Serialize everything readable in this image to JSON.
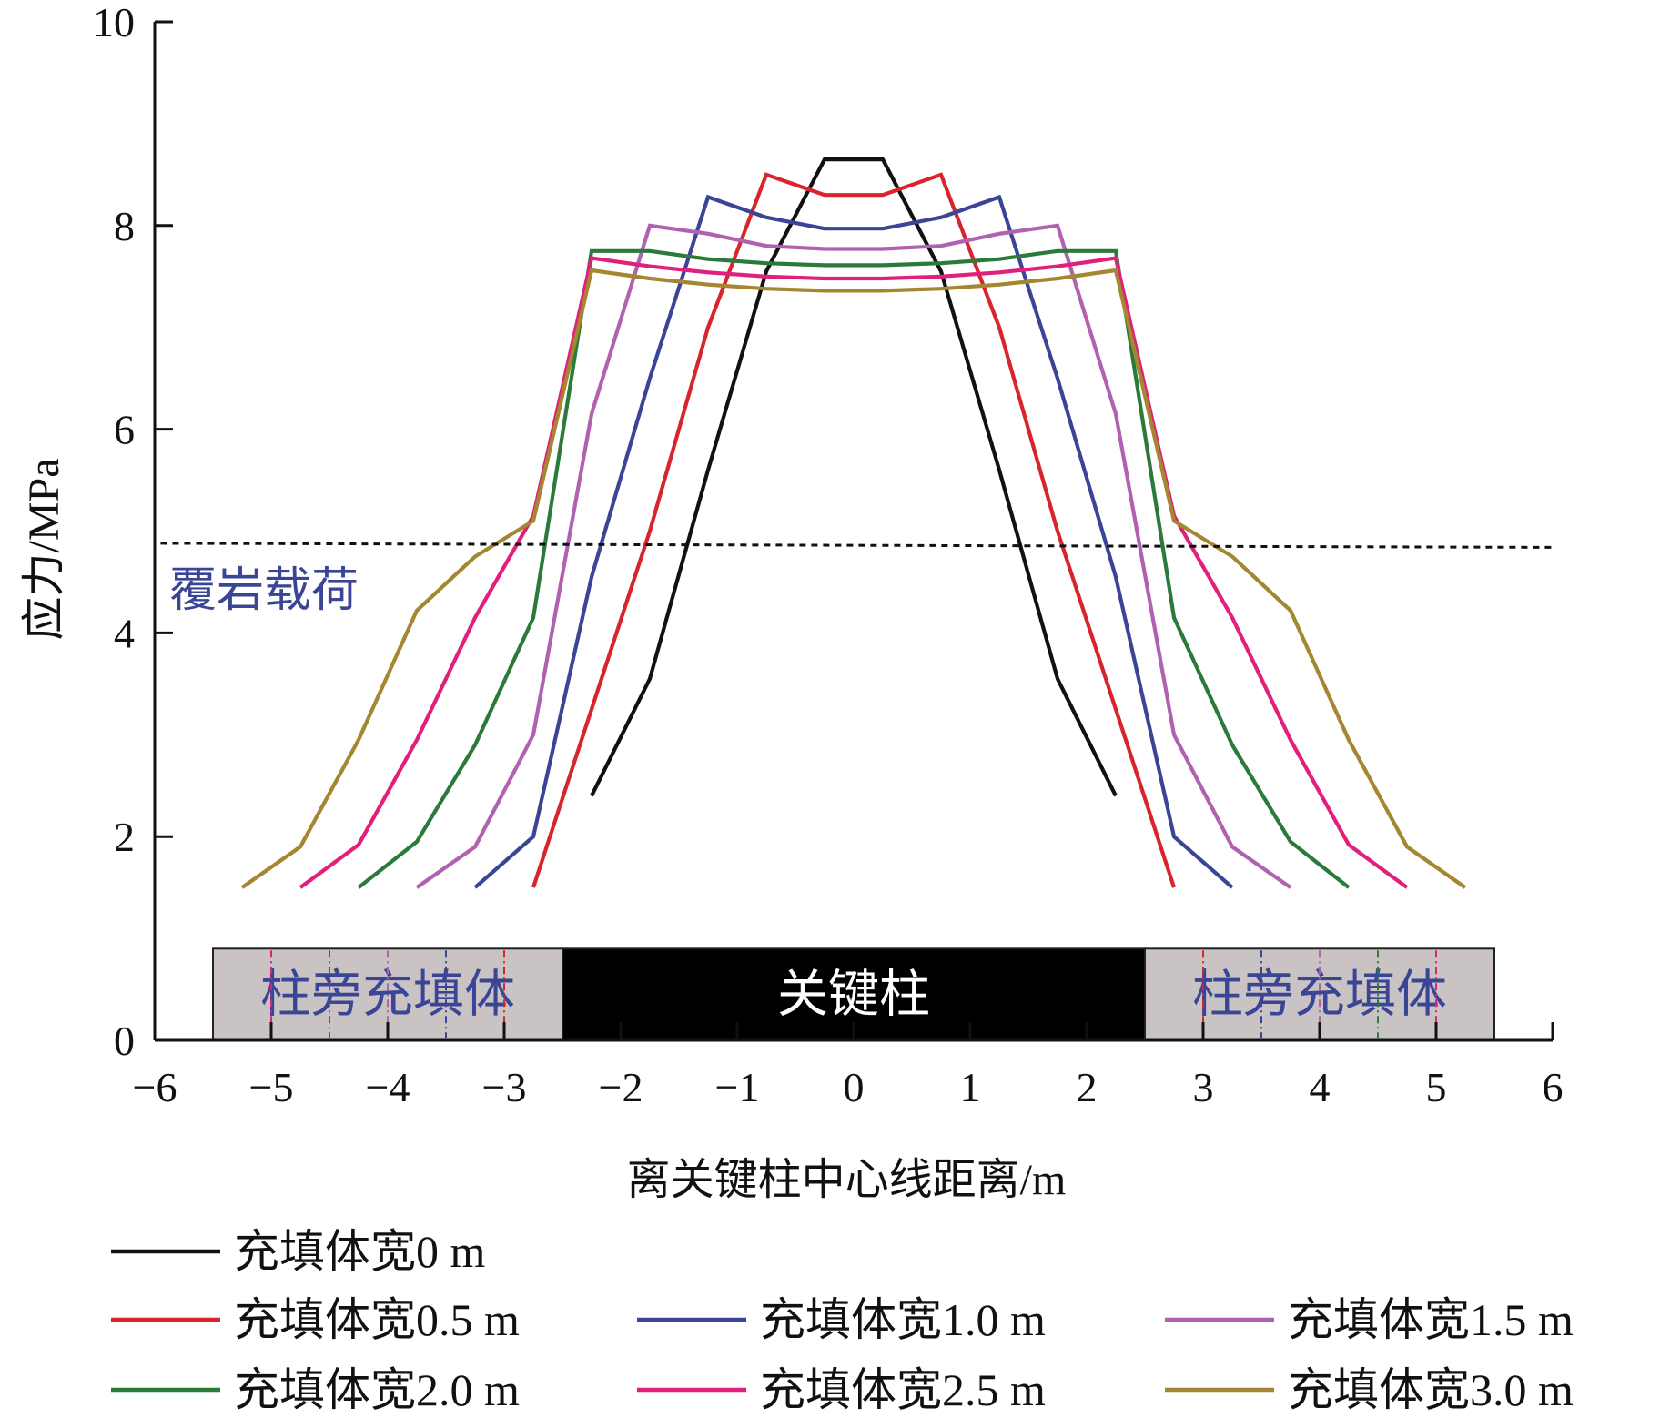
{
  "chart_data": {
    "type": "line",
    "xlabel": "离关键柱中心线距离/m",
    "ylabel": "应力/MPa",
    "xlim": [
      -6,
      6
    ],
    "ylim": [
      0,
      10
    ],
    "xticks": [
      -6,
      -5,
      -4,
      -3,
      -2,
      -1,
      0,
      1,
      2,
      3,
      4,
      5,
      6
    ],
    "yticks": [
      0,
      2,
      4,
      6,
      8,
      10
    ],
    "xtick_labels": [
      "−6",
      "−5",
      "−4",
      "−3",
      "−2",
      "−1",
      "0",
      "1",
      "2",
      "3",
      "4",
      "5",
      "6"
    ],
    "ytick_labels": [
      "0",
      "2",
      "4",
      "6",
      "8",
      "10"
    ],
    "grid": false,
    "legend_position": "bottom",
    "overburden_load": {
      "label": "覆岩载荷",
      "label_color": "#3a4596",
      "y_start": 4.88,
      "y_end": 4.84,
      "x_range": [
        -5.95,
        6
      ]
    },
    "regions": [
      {
        "label": "柱旁充填体",
        "x_start": -5.5,
        "x_end": -2.5,
        "fill": "#c9c3c3",
        "text_color": "#3a4596"
      },
      {
        "label": "关键柱",
        "x_start": -2.5,
        "x_end": 2.5,
        "fill": "#000000",
        "text_color": "#ffffff"
      },
      {
        "label": "柱旁充填体",
        "x_start": 2.5,
        "x_end": 5.5,
        "fill": "#c9c3c3",
        "text_color": "#3a4596"
      }
    ],
    "region_band": [
      0.0,
      0.9
    ],
    "region_markers": [
      {
        "x": -5.0,
        "color": "#e0207a"
      },
      {
        "x": -4.5,
        "color": "#2a7a3a"
      },
      {
        "x": -4.0,
        "color": "#b062b0"
      },
      {
        "x": -3.5,
        "color": "#3a4596"
      },
      {
        "x": -3.0,
        "color": "#d8242d"
      },
      {
        "x": 3.0,
        "color": "#d8242d"
      },
      {
        "x": 3.5,
        "color": "#3a4596"
      },
      {
        "x": 4.0,
        "color": "#b062b0"
      },
      {
        "x": 4.5,
        "color": "#2a7a3a"
      },
      {
        "x": 5.0,
        "color": "#e0207a"
      }
    ],
    "series": [
      {
        "name": "充填体宽0 m",
        "color": "#111111",
        "x": [
          -2.25,
          -1.75,
          -1.25,
          -0.75,
          -0.25,
          0.25,
          0.75,
          1.25,
          1.75,
          2.25
        ],
        "y": [
          2.4,
          3.55,
          5.6,
          7.55,
          8.65,
          8.65,
          7.55,
          5.6,
          3.55,
          2.4
        ]
      },
      {
        "name": "充填体宽0.5 m",
        "color": "#d8242d",
        "x": [
          -2.75,
          -2.25,
          -1.75,
          -1.25,
          -0.75,
          -0.25,
          0.25,
          0.75,
          1.25,
          1.75,
          2.25,
          2.75
        ],
        "y": [
          1.5,
          3.25,
          5.0,
          7.0,
          8.5,
          8.3,
          8.3,
          8.5,
          7.0,
          5.0,
          3.25,
          1.5
        ]
      },
      {
        "name": "充填体宽1.0 m",
        "color": "#3a4596",
        "x": [
          -3.25,
          -2.75,
          -2.25,
          -1.75,
          -1.25,
          -0.75,
          -0.25,
          0.25,
          0.75,
          1.25,
          1.75,
          2.25,
          2.75,
          3.25
        ],
        "y": [
          1.5,
          2.0,
          4.55,
          6.5,
          8.28,
          8.08,
          7.97,
          7.97,
          8.08,
          8.28,
          6.5,
          4.55,
          2.0,
          1.5
        ]
      },
      {
        "name": "充填体宽1.5 m",
        "color": "#b062b0",
        "x": [
          -3.75,
          -3.25,
          -2.75,
          -2.25,
          -1.75,
          -1.25,
          -0.75,
          -0.25,
          0.25,
          0.75,
          1.25,
          1.75,
          2.25,
          2.75,
          3.25,
          3.75
        ],
        "y": [
          1.5,
          1.9,
          3.0,
          6.15,
          8.0,
          7.92,
          7.8,
          7.77,
          7.77,
          7.8,
          7.92,
          8.0,
          6.15,
          3.0,
          1.9,
          1.5
        ]
      },
      {
        "name": "充填体宽2.0 m",
        "color": "#2a7a3a",
        "x": [
          -4.25,
          -3.75,
          -3.25,
          -2.75,
          -2.25,
          -1.75,
          -1.25,
          -0.75,
          -0.25,
          0.25,
          0.75,
          1.25,
          1.75,
          2.25,
          2.75,
          3.25,
          3.75,
          4.25
        ],
        "y": [
          1.5,
          1.95,
          2.9,
          4.15,
          7.75,
          7.75,
          7.67,
          7.63,
          7.61,
          7.61,
          7.63,
          7.67,
          7.75,
          7.75,
          4.15,
          2.9,
          1.95,
          1.5
        ]
      },
      {
        "name": "充填体宽2.5 m",
        "color": "#e0207a",
        "x": [
          -4.75,
          -4.25,
          -3.75,
          -3.25,
          -2.75,
          -2.25,
          -1.75,
          -1.25,
          -0.75,
          -0.25,
          0.25,
          0.75,
          1.25,
          1.75,
          2.25,
          2.75,
          3.25,
          3.75,
          4.25,
          4.75
        ],
        "y": [
          1.5,
          1.92,
          2.95,
          4.15,
          5.15,
          7.68,
          7.6,
          7.54,
          7.5,
          7.48,
          7.48,
          7.5,
          7.54,
          7.6,
          7.68,
          5.15,
          4.15,
          2.95,
          1.92,
          1.5
        ]
      },
      {
        "name": "充填体宽3.0 m",
        "color": "#a58631",
        "x": [
          -5.25,
          -4.75,
          -4.25,
          -3.75,
          -3.25,
          -2.75,
          -2.25,
          -1.75,
          -1.25,
          -0.75,
          -0.25,
          0.25,
          0.75,
          1.25,
          1.75,
          2.25,
          2.75,
          3.25,
          3.75,
          4.25,
          4.75,
          5.25
        ],
        "y": [
          1.5,
          1.9,
          2.95,
          4.22,
          4.75,
          5.1,
          7.56,
          7.48,
          7.42,
          7.38,
          7.36,
          7.36,
          7.38,
          7.42,
          7.48,
          7.56,
          5.1,
          4.75,
          4.22,
          2.95,
          1.9,
          1.5
        ]
      }
    ]
  }
}
